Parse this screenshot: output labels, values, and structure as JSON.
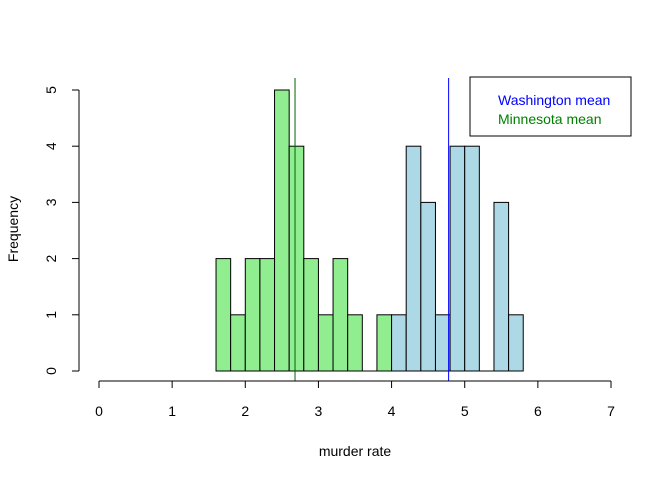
{
  "chart_data": {
    "type": "bar",
    "subtype": "overlaid-histogram",
    "title": "",
    "xlabel": "murder rate",
    "ylabel": "Frequency",
    "xlim": [
      0,
      7
    ],
    "ylim": [
      0,
      5
    ],
    "x_ticks": [
      "0",
      "1",
      "2",
      "3",
      "4",
      "5",
      "6",
      "7"
    ],
    "y_ticks": [
      "0",
      "1",
      "2",
      "3",
      "4",
      "5"
    ],
    "bin_width": 0.2,
    "grid": false,
    "legend_position": "top-right",
    "series": [
      {
        "legend_label": "Minnesota",
        "color": "#90EE90",
        "bins": [
          {
            "start": 1.6,
            "count": 2
          },
          {
            "start": 1.8,
            "count": 1
          },
          {
            "start": 2.0,
            "count": 2
          },
          {
            "start": 2.2,
            "count": 2
          },
          {
            "start": 2.4,
            "count": 5
          },
          {
            "start": 2.6,
            "count": 4
          },
          {
            "start": 2.8,
            "count": 2
          },
          {
            "start": 3.0,
            "count": 1
          },
          {
            "start": 3.2,
            "count": 2
          },
          {
            "start": 3.4,
            "count": 1
          },
          {
            "start": 3.6,
            "count": 0
          },
          {
            "start": 3.8,
            "count": 1
          }
        ],
        "mean": 2.68,
        "mean_color": "#006400"
      },
      {
        "legend_label": "Washington",
        "color": "#ADD8E6",
        "bins": [
          {
            "start": 4.0,
            "count": 1
          },
          {
            "start": 4.2,
            "count": 4
          },
          {
            "start": 4.4,
            "count": 3
          },
          {
            "start": 4.6,
            "count": 1
          },
          {
            "start": 4.8,
            "count": 4
          },
          {
            "start": 5.0,
            "count": 4
          },
          {
            "start": 5.2,
            "count": 0
          },
          {
            "start": 5.4,
            "count": 3
          },
          {
            "start": 5.6,
            "count": 1
          }
        ],
        "mean": 4.78,
        "mean_color": "#0000FF"
      }
    ],
    "legend": [
      {
        "label": "Washington mean",
        "color": "#0000FF"
      },
      {
        "label": "Minnesota mean",
        "color": "#008000"
      }
    ]
  }
}
